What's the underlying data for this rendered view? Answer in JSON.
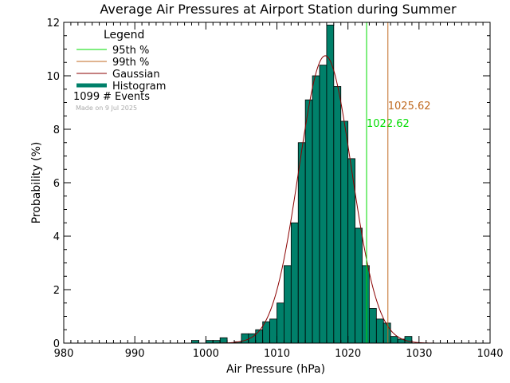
{
  "chart_data": {
    "type": "bar",
    "title": "Average Air Pressures at Airport Station during Summer",
    "xlabel": "Air Pressure (hPa)",
    "ylabel": "Probability (%)",
    "xlim": [
      980,
      1040
    ],
    "ylim": [
      0,
      12
    ],
    "xticks": [
      "980",
      "990",
      "1000",
      "1010",
      "1020",
      "1030",
      "1040"
    ],
    "yticks": [
      "0",
      "2",
      "4",
      "6",
      "8",
      "10",
      "12"
    ],
    "bin_width": 1,
    "bins": [
      {
        "x0": 998,
        "value": 0.1
      },
      {
        "x0": 1000,
        "value": 0.1
      },
      {
        "x0": 1001,
        "value": 0.1
      },
      {
        "x0": 1002,
        "value": 0.2
      },
      {
        "x0": 1004,
        "value": 0.05
      },
      {
        "x0": 1005,
        "value": 0.35
      },
      {
        "x0": 1006,
        "value": 0.35
      },
      {
        "x0": 1007,
        "value": 0.5
      },
      {
        "x0": 1008,
        "value": 0.8
      },
      {
        "x0": 1009,
        "value": 0.9
      },
      {
        "x0": 1010,
        "value": 1.5
      },
      {
        "x0": 1011,
        "value": 2.9
      },
      {
        "x0": 1012,
        "value": 4.5
      },
      {
        "x0": 1013,
        "value": 7.5
      },
      {
        "x0": 1014,
        "value": 9.1
      },
      {
        "x0": 1015,
        "value": 10.0
      },
      {
        "x0": 1016,
        "value": 10.4
      },
      {
        "x0": 1017,
        "value": 11.9
      },
      {
        "x0": 1018,
        "value": 9.6
      },
      {
        "x0": 1019,
        "value": 8.3
      },
      {
        "x0": 1020,
        "value": 6.9
      },
      {
        "x0": 1021,
        "value": 4.3
      },
      {
        "x0": 1022,
        "value": 2.9
      },
      {
        "x0": 1023,
        "value": 1.3
      },
      {
        "x0": 1024,
        "value": 0.9
      },
      {
        "x0": 1025,
        "value": 0.75
      },
      {
        "x0": 1026,
        "value": 0.25
      },
      {
        "x0": 1027,
        "value": 0.15
      },
      {
        "x0": 1028,
        "value": 0.25
      }
    ],
    "gaussian": {
      "mean": 1016.8,
      "sigma": 3.7,
      "peak": 10.75
    },
    "vlines": [
      {
        "key": "p95",
        "x": 1022.62,
        "label": "1022.62",
        "color": "#00dd00"
      },
      {
        "key": "p99",
        "x": 1025.62,
        "label": "1025.62",
        "color": "#c06a20"
      }
    ],
    "legend": {
      "title": "Legend",
      "placement": "top-left",
      "entries": [
        {
          "label": "95th %",
          "color": "#00dd00",
          "style": "line"
        },
        {
          "label": "99th %",
          "color": "#c06a20",
          "style": "line"
        },
        {
          "label": "Gaussian",
          "color": "#8b0000",
          "style": "line"
        },
        {
          "label": "Histogram",
          "color": "#00806a",
          "style": "thick"
        }
      ],
      "events_count": "1099",
      "events_label": "# Events",
      "made_on": "Made on 9 Jul 2025"
    },
    "colors": {
      "histogram_fill": "#00806a",
      "histogram_edge": "#000000",
      "gaussian": "#8b0000",
      "axes": "#000000"
    }
  }
}
